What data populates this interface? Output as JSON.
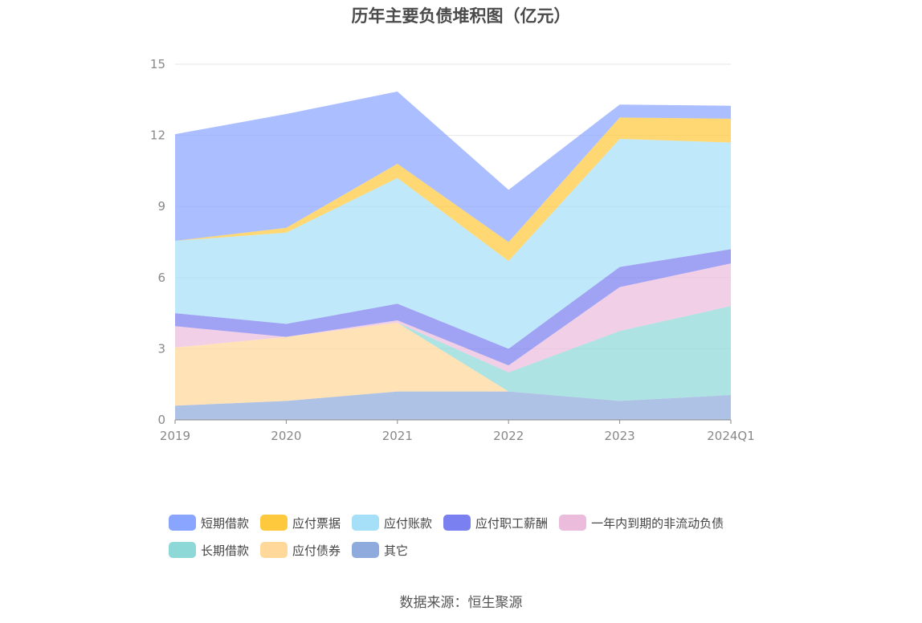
{
  "chart_data": {
    "type": "area",
    "stacked": true,
    "title": "历年主要负债堆积图（亿元）",
    "x": [
      "2019",
      "2020",
      "2021",
      "2022",
      "2023",
      "2024Q1"
    ],
    "ylim": [
      0,
      15
    ],
    "yticks": [
      "0",
      "3",
      "6",
      "9",
      "12",
      "15"
    ],
    "grid": true,
    "legend_position": "bottom",
    "series": [
      {
        "name": "其它",
        "color": "#8faadc",
        "values": [
          0.6,
          0.8,
          1.2,
          1.2,
          0.8,
          1.05
        ]
      },
      {
        "name": "应付债券",
        "color": "#ffd89a",
        "values": [
          2.45,
          2.7,
          2.9,
          0.0,
          0.0,
          0.0
        ]
      },
      {
        "name": "长期借款",
        "color": "#8ed8d8",
        "values": [
          0.0,
          0.0,
          0.0,
          0.8,
          2.95,
          3.75
        ]
      },
      {
        "name": "一年内到期的非流动负债",
        "color": "#ecbcdc",
        "values": [
          0.9,
          0.0,
          0.1,
          0.3,
          1.85,
          1.8
        ]
      },
      {
        "name": "应付职工薪酬",
        "color": "#7b80f0",
        "values": [
          0.55,
          0.55,
          0.7,
          0.7,
          0.85,
          0.6
        ]
      },
      {
        "name": "应付账款",
        "color": "#a6dff8",
        "values": [
          3.05,
          3.85,
          5.3,
          3.7,
          5.4,
          4.5
        ]
      },
      {
        "name": "应付票据",
        "color": "#ffc93d",
        "values": [
          0.0,
          0.2,
          0.6,
          0.8,
          0.9,
          1.0
        ]
      },
      {
        "name": "短期借款",
        "color": "#8aa5ff",
        "values": [
          4.5,
          4.8,
          3.05,
          2.2,
          0.55,
          0.55
        ]
      }
    ],
    "legend_order": [
      "短期借款",
      "应付票据",
      "应付账款",
      "应付职工薪酬",
      "一年内到期的非流动负债",
      "长期借款",
      "应付债券",
      "其它"
    ]
  },
  "source_text": "数据来源：恒生聚源"
}
